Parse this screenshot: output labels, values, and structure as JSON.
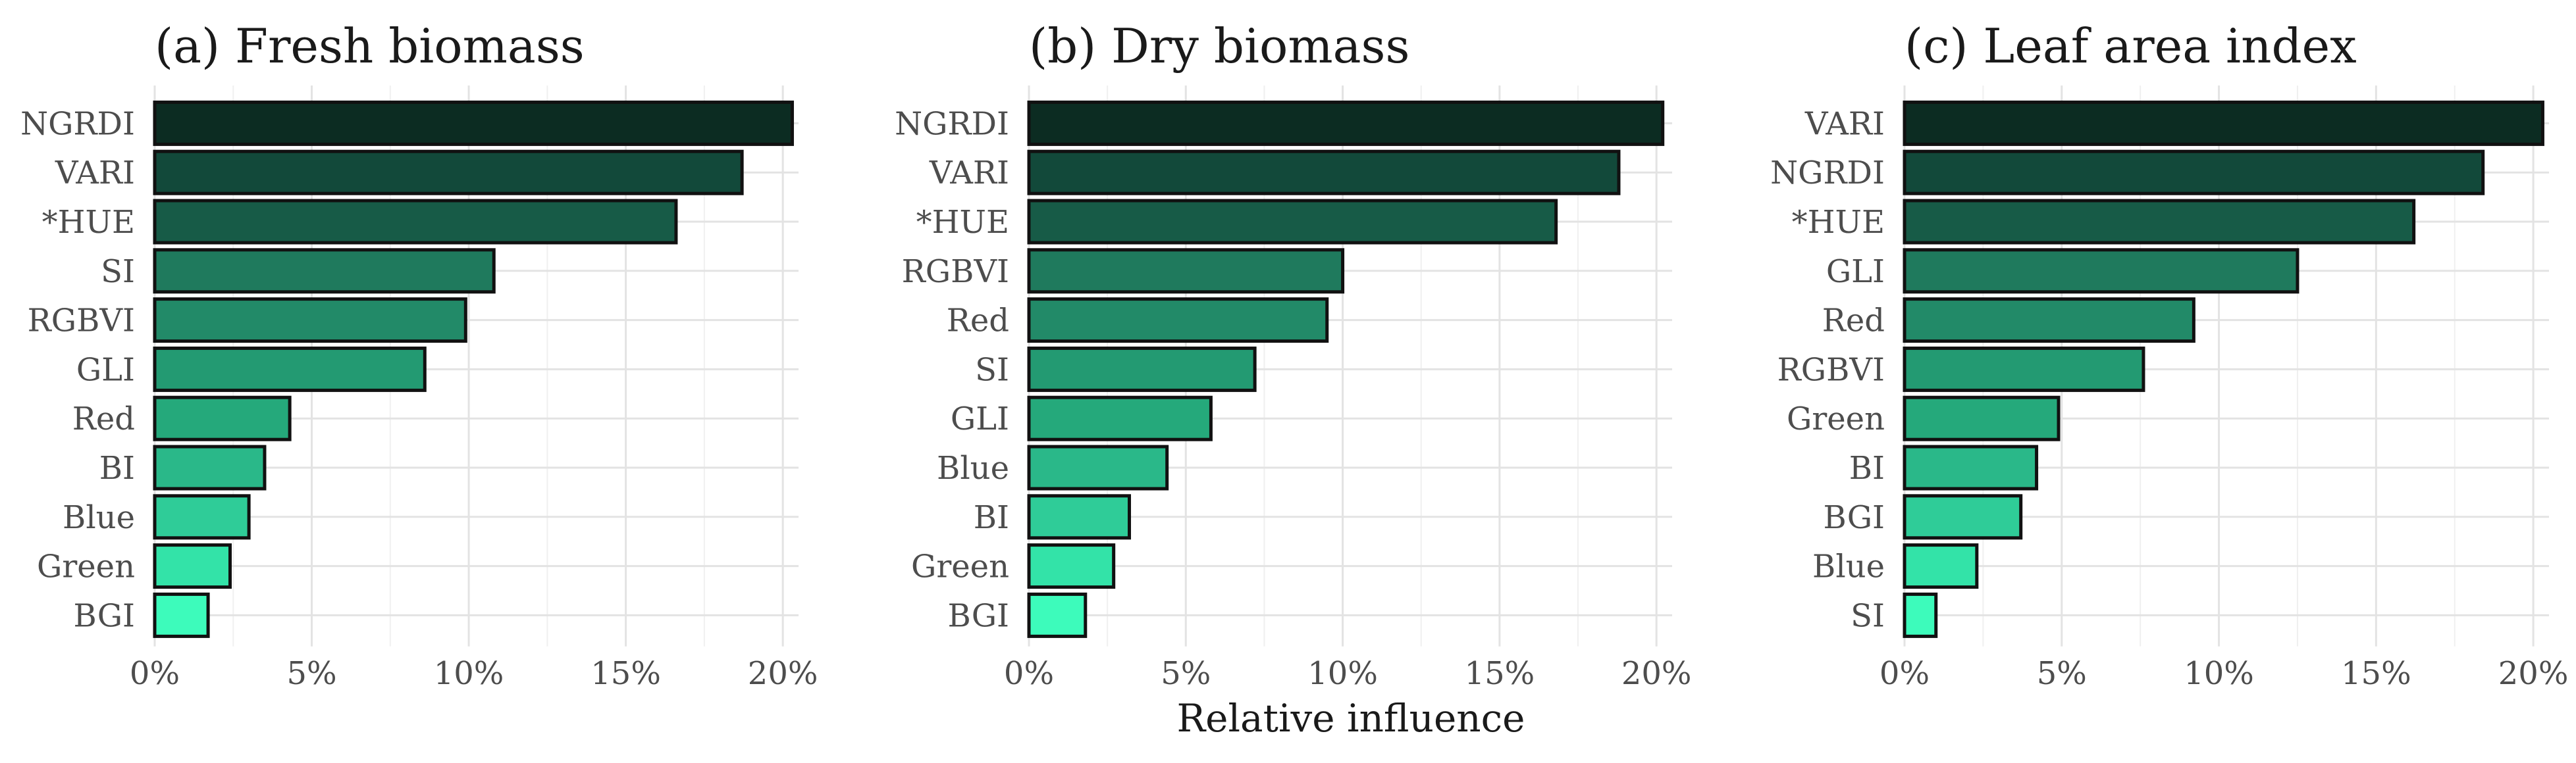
{
  "chart_data": [
    {
      "type": "bar",
      "orientation": "horizontal",
      "title": "(a) Fresh biomass",
      "categories": [
        "NGRDI",
        "VARI",
        "*HUE",
        "SI",
        "RGBVI",
        "GLI",
        "Red",
        "BI",
        "Blue",
        "Green",
        "BGI"
      ],
      "values": [
        20.3,
        18.7,
        16.6,
        10.8,
        9.9,
        8.6,
        4.3,
        3.5,
        3.0,
        2.4,
        1.7
      ],
      "xticks": [
        "0%",
        "5%",
        "10%",
        "15%",
        "20%"
      ],
      "xlim": [
        0,
        20.5
      ],
      "grid": true
    },
    {
      "type": "bar",
      "orientation": "horizontal",
      "title": "(b) Dry biomass",
      "categories": [
        "NGRDI",
        "VARI",
        "*HUE",
        "RGBVI",
        "Red",
        "SI",
        "GLI",
        "Blue",
        "BI",
        "Green",
        "BGI"
      ],
      "values": [
        20.2,
        18.8,
        16.8,
        10.0,
        9.5,
        7.2,
        5.8,
        4.4,
        3.2,
        2.7,
        1.8
      ],
      "xticks": [
        "0%",
        "5%",
        "10%",
        "15%",
        "20%"
      ],
      "xlim": [
        0,
        20.5
      ],
      "grid": true
    },
    {
      "type": "bar",
      "orientation": "horizontal",
      "title": "(c) Leaf area index",
      "categories": [
        "VARI",
        "NGRDI",
        "*HUE",
        "GLI",
        "Red",
        "RGBVI",
        "Green",
        "BI",
        "BGI",
        "Blue",
        "SI"
      ],
      "values": [
        20.3,
        18.4,
        16.2,
        12.5,
        9.2,
        7.6,
        4.9,
        4.2,
        3.7,
        2.3,
        1.0
      ],
      "xticks": [
        "0%",
        "5%",
        "10%",
        "15%",
        "20%"
      ],
      "xlim": [
        0,
        20.5
      ],
      "grid": true
    }
  ],
  "shared_xlabel": "Relative influence",
  "colors": {
    "bar_gradient": [
      "#0c2c22",
      "#12493a",
      "#175b47",
      "#1f7a5d",
      "#228a68",
      "#239a72",
      "#25a97b",
      "#2ab889",
      "#2fcc98",
      "#33e3a8",
      "#3dfbbb"
    ],
    "bar_outline": "#111111",
    "grid": "#e3e3e3"
  }
}
